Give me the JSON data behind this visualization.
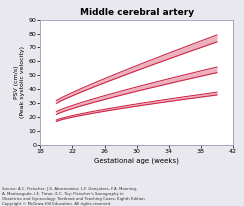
{
  "title": "Middle cerebral artery",
  "xlabel": "Gestational age (weeks)",
  "ylabel": "PSV (cm/s)\n(Peak systolic velocity)",
  "xlim": [
    18,
    42
  ],
  "ylim": [
    0,
    90
  ],
  "xticks": [
    18,
    22,
    26,
    30,
    34,
    38,
    42
  ],
  "yticks": [
    0,
    10,
    20,
    30,
    40,
    50,
    60,
    70,
    80,
    90
  ],
  "fig_bg_color": "#e8e8ee",
  "plot_bg_color": "#ffffff",
  "spine_color": "#9999bb",
  "line_color": "#cc2244",
  "source_text": "Source: A.C. Fleischer, J.S. Abramowicz, L.F. Gonçalves, F.A. Manning,\nA. Monteagudo, I.E. Timor, E.C. Toy: Fleischer's Sonography in\nObstetrics and Gynecology: Textbook and Teaching Cases, Eighth Edition\nCopyright © McGraw-Hill Education. All rights reserved.",
  "curves": {
    "upper_upper": {
      "x0": 20,
      "x1": 40,
      "y0": 32,
      "y1": 79,
      "curve": 0.3
    },
    "upper_lower": {
      "x0": 20,
      "x1": 40,
      "y0": 30,
      "y1": 74,
      "curve": 0.3
    },
    "mid_upper": {
      "x0": 20,
      "x1": 40,
      "y0": 24,
      "y1": 56,
      "curve": 0.5
    },
    "mid_lower": {
      "x0": 20,
      "x1": 40,
      "y0": 22,
      "y1": 52,
      "curve": 0.5
    },
    "lower_upper": {
      "x0": 20,
      "x1": 40,
      "y0": 18,
      "y1": 38,
      "curve": 0.7
    },
    "lower_lower": {
      "x0": 20,
      "x1": 40,
      "y0": 17,
      "y1": 36,
      "curve": 0.7
    }
  }
}
